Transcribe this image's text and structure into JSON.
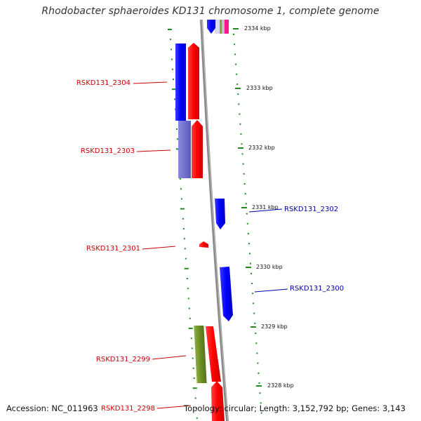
{
  "title": "Rhodobacter sphaeroides KD131 chromosome 1, complete genome",
  "footer": {
    "accession": "Accession: NC_011963",
    "topology": "Topology: circular; Length: 3,152,792 bp; Genes: 3,143"
  },
  "colors": {
    "forward": "#ff0000",
    "reverse": "#0000ff",
    "forward_label": "#cc0000",
    "reverse_label": "#0000aa",
    "ticks": "#228b22",
    "backbone": "#808080",
    "olive": "#6b8e23",
    "pink": "#ff1493"
  },
  "ruler": [
    "2334 kbp",
    "2333 kbp",
    "2332 kbp",
    "2331 kbp",
    "2330 kbp",
    "2329 kbp",
    "2328 kbp"
  ],
  "genes": [
    {
      "id": "RSKD131_2304",
      "strand": "forward"
    },
    {
      "id": "RSKD131_2303",
      "strand": "forward"
    },
    {
      "id": "RSKD131_2302",
      "strand": "reverse"
    },
    {
      "id": "RSKD131_2301",
      "strand": "forward"
    },
    {
      "id": "RSKD131_2300",
      "strand": "reverse"
    },
    {
      "id": "RSKD131_2299",
      "strand": "forward"
    },
    {
      "id": "RSKD131_2298",
      "strand": "forward"
    }
  ]
}
